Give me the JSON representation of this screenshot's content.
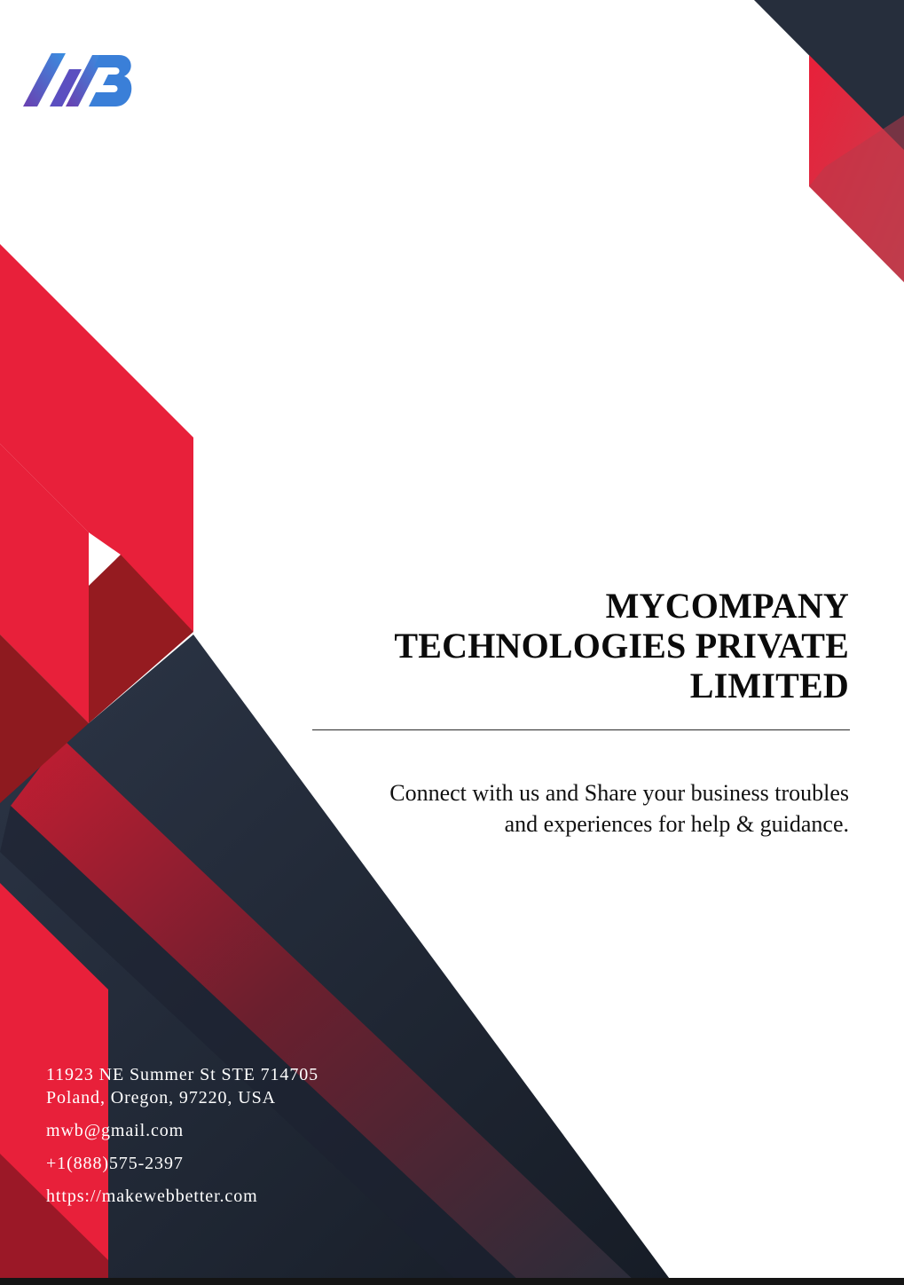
{
  "colors": {
    "red": "#e8203a",
    "dark_red": "#8e1a1f",
    "navy": "#263040",
    "logo_blue": "#3a7fd8",
    "logo_purple": "#6a3fb0"
  },
  "logo": {
    "icon": "mwb-logo-icon"
  },
  "title": {
    "line1": "MYCOMPANY",
    "line2": "TECHNOLOGIES PRIVATE",
    "line3": "LIMITED"
  },
  "tagline": {
    "line1": "Connect with us and Share your business troubles",
    "line2": "and experiences for help & guidance."
  },
  "contact": {
    "address_line1": "11923 NE Summer St STE 714705",
    "address_line2": "Poland, Oregon, 97220, USA",
    "email": "mwb@gmail.com",
    "phone": "+1(888)575-2397",
    "website": "https://makewebbetter.com"
  }
}
